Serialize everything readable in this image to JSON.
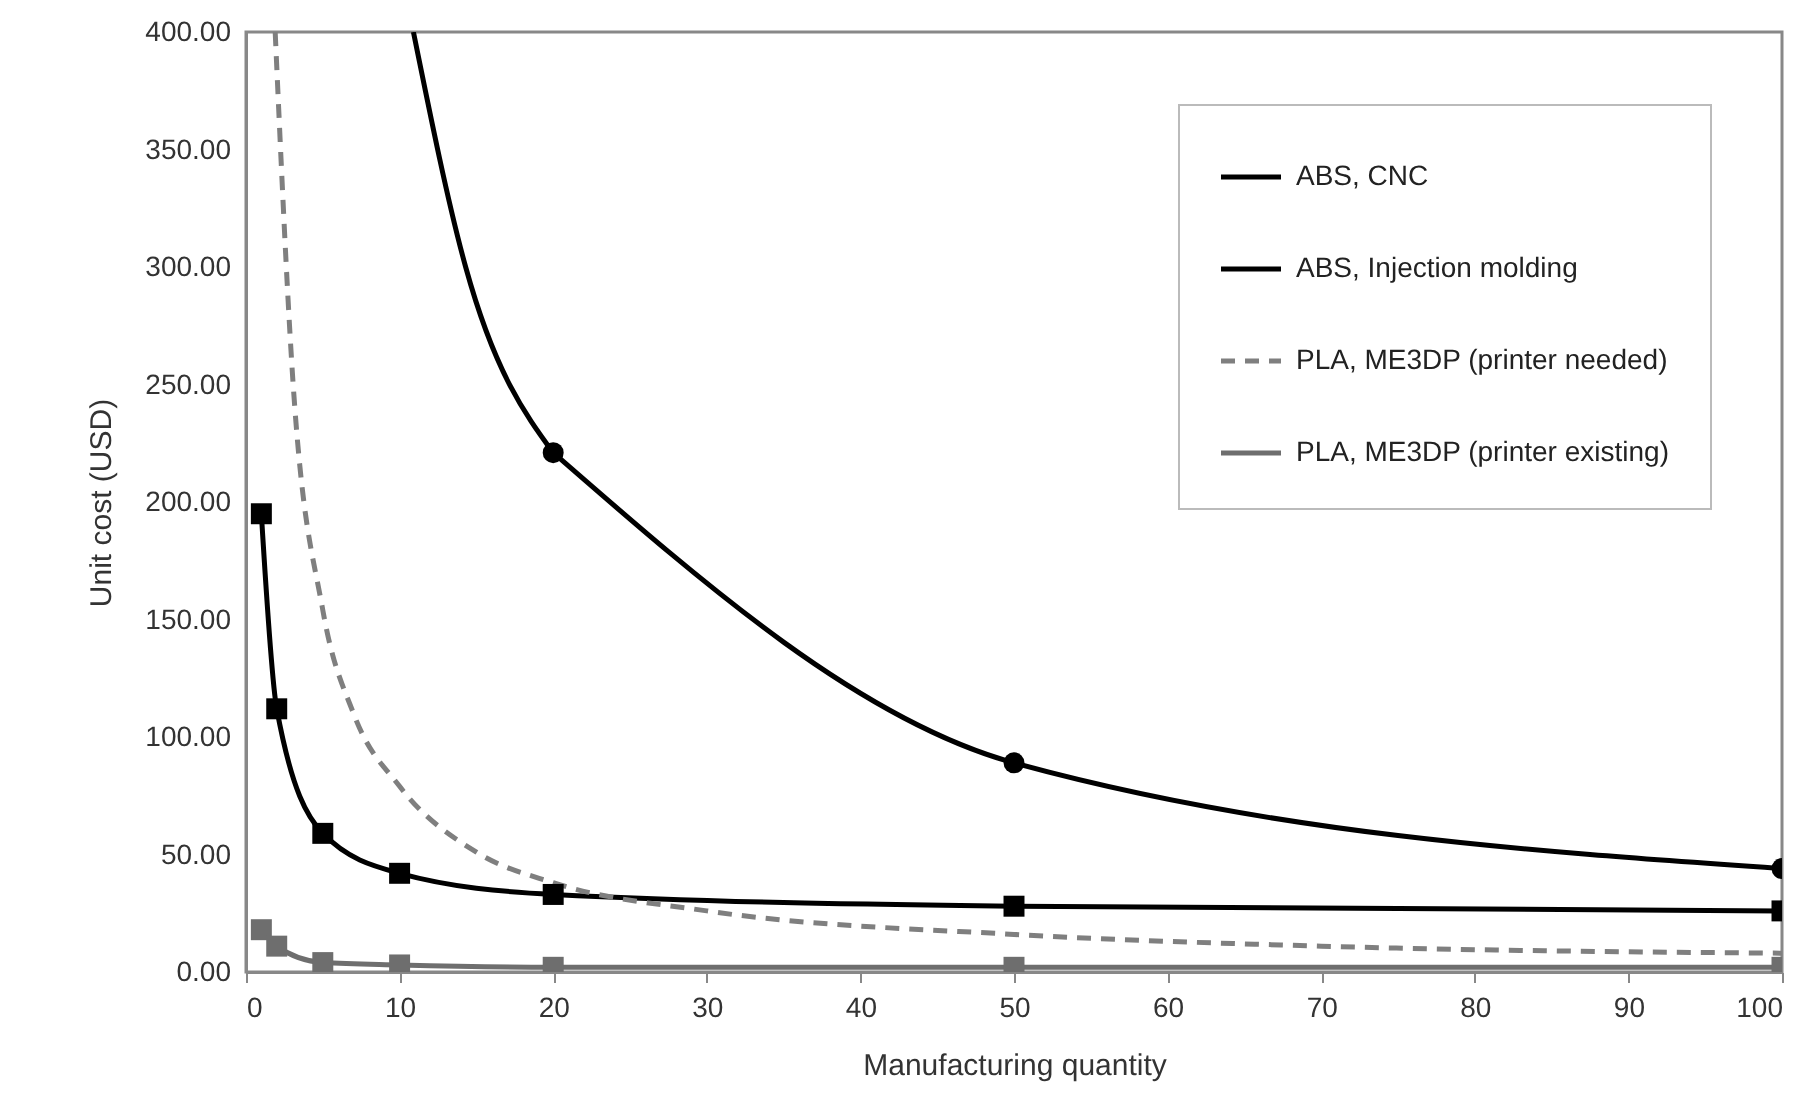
{
  "chart_data": {
    "type": "line",
    "xlabel": "Manufacturing quantity",
    "ylabel": "Unit cost (USD)",
    "xlim": [
      0,
      100
    ],
    "xticks": [
      0,
      10,
      20,
      30,
      40,
      50,
      60,
      70,
      80,
      90,
      100
    ],
    "ylim": [
      0,
      400
    ],
    "yticks": [
      {
        "value": 0,
        "label": "0.00"
      },
      {
        "value": 50,
        "label": "50.00"
      },
      {
        "value": 100,
        "label": "100.00"
      },
      {
        "value": 150,
        "label": "150.00"
      },
      {
        "value": 200,
        "label": "200.00"
      },
      {
        "value": 250,
        "label": "250.00"
      },
      {
        "value": 300,
        "label": "300.00"
      },
      {
        "value": 350,
        "label": "350.00"
      },
      {
        "value": 400,
        "label": "400.00"
      }
    ],
    "grid": false,
    "legend": "top right",
    "series": [
      {
        "name": "ABS, CNC",
        "color": "#000000",
        "marker": "square",
        "line_style": "solid",
        "x": [
          1,
          2,
          5,
          10,
          20,
          50,
          100
        ],
        "values": [
          195,
          112,
          59,
          42,
          33,
          28,
          26
        ]
      },
      {
        "name": "ABS, Injection molding",
        "color": "#000000",
        "marker": "circle",
        "line_style": "solid",
        "x": [
          20,
          50,
          100
        ],
        "values": [
          221,
          89,
          44
        ]
      },
      {
        "color": "#000000",
        "marker": "none",
        "line_style": "solid",
        "x": [
          10.9,
          14.3,
          20
        ],
        "values": [
          400,
          300,
          221
        ]
      },
      {
        "name": "PLA, ME3DP (printer needed)",
        "color": "#7f7f7f",
        "marker": "none",
        "line_style": "dashed",
        "x": [
          1.9,
          3,
          5,
          7,
          10,
          15,
          20,
          30,
          50,
          70,
          100
        ],
        "values": [
          400,
          257,
          154,
          110,
          79,
          51,
          38,
          26,
          16,
          11,
          8
        ]
      },
      {
        "name": "PLA, ME3DP (printer existing)",
        "color": "#6e6e6e",
        "marker": "square",
        "line_style": "solid",
        "x": [
          1,
          2,
          5,
          10,
          20,
          50,
          100
        ],
        "values": [
          18,
          11,
          4,
          3,
          2,
          2,
          2
        ]
      }
    ]
  }
}
